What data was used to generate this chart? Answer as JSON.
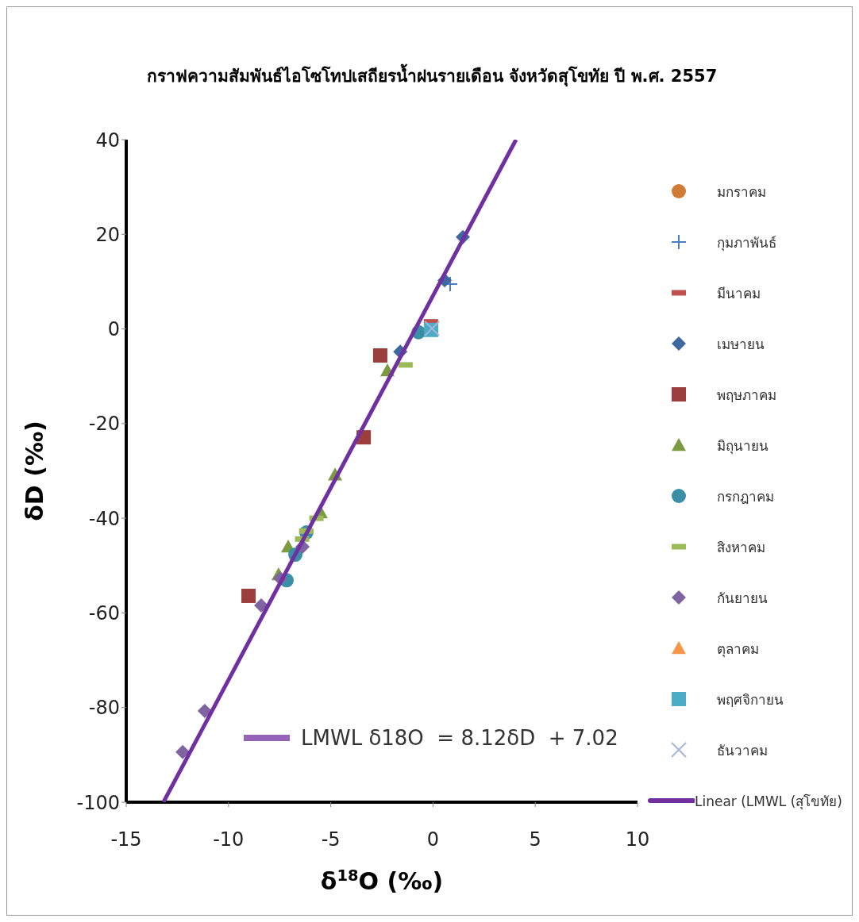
{
  "chart_data": {
    "type": "scatter",
    "title": "กราฟความสัมพันธ์ไอโซโทปเสถียรน้ำฝนรายเดือน จังหวัดสุโขทัย ปี พ.ศ. 2557",
    "xlabel": "δ$^{18}$O (‰)",
    "ylabel": "δD (‰)",
    "xlim": [
      -15,
      10
    ],
    "xticks": [
      -15,
      -10,
      -5,
      0,
      5,
      10
    ],
    "ylim": [
      -100,
      40
    ],
    "yticks": [
      -100,
      -80,
      -60,
      -40,
      -20,
      0,
      20,
      40
    ],
    "grid": false,
    "legend": "right",
    "annotations": [
      "LMWL δ18O  = 8.12δD  + 7.02"
    ],
    "series": [
      {
        "name": "มกราคม",
        "color": "#d07b36",
        "marker": "circle"
      },
      {
        "name": "กุมภาพันธ์",
        "color": "#4a7ec4",
        "marker": "cross",
        "x": [
          0.84
        ],
        "values": [
          9.5
        ]
      },
      {
        "name": "มีนาคม",
        "color": "#c0504d",
        "x": [
          -0.1
        ],
        "values": [
          1.5
        ]
      },
      {
        "name": "เมษายน",
        "color": "#3d68a0",
        "marker": "diamond",
        "x": [
          1.46,
          0.57,
          -1.6
        ],
        "values": [
          19.4,
          10.3,
          -4.8
        ]
      },
      {
        "name": "พฤษภาคม",
        "color": "#9c3f3c",
        "marker": "square",
        "x": [
          -2.58,
          -3.39,
          -9.02
        ],
        "values": [
          -5.6,
          -22.9,
          -56.4
        ]
      },
      {
        "name": "มิถุนายน",
        "color": "#7b9a42",
        "marker": "triangle",
        "x": [
          -2.23,
          -4.79,
          -5.49,
          -7.08,
          -7.55
        ],
        "values": [
          -8.8,
          -30.8,
          -38.8,
          -46,
          -51.9
        ]
      },
      {
        "name": "กรกฎาคม",
        "color": "#3a8ea6",
        "marker": "circle",
        "x": [
          -0.71,
          -6.19,
          -6.73,
          -7.16
        ],
        "values": [
          -0.7,
          -43,
          -47.7,
          -53.1
        ]
      },
      {
        "name": "สิงหาคม",
        "color": "#9bbb59",
        "x": [
          -1.34,
          -5.7,
          -6.2,
          -6.4
        ],
        "values": [
          -7.6,
          -40,
          -42.7,
          -44.4
        ]
      },
      {
        "name": "กันยายน",
        "color": "#8064a2",
        "marker": "diamond",
        "x": [
          -6.38,
          -7.47,
          -8.4,
          -11.16,
          -12.24
        ],
        "values": [
          -46,
          -52.7,
          -58.4,
          -80.7,
          -89.4
        ]
      },
      {
        "name": "ตุลาคม",
        "color": "#f79646",
        "marker": "triangle"
      },
      {
        "name": "พฤศจิกายน",
        "color": "#4bacc6",
        "marker": "square",
        "x": [
          -0.09
        ],
        "values": [
          -0.2
        ]
      },
      {
        "name": "ธันวาคม",
        "color": "#a5b6d8",
        "marker": "x",
        "x": [
          -0.05
        ],
        "values": [
          0.1
        ]
      },
      {
        "name": "Linear (LMWL (สุโขทัย)",
        "type": "line",
        "color": "#7030a0",
        "marker": "none",
        "x": [
          -13.18,
          4.06
        ],
        "values": [
          -100,
          40
        ]
      }
    ]
  }
}
